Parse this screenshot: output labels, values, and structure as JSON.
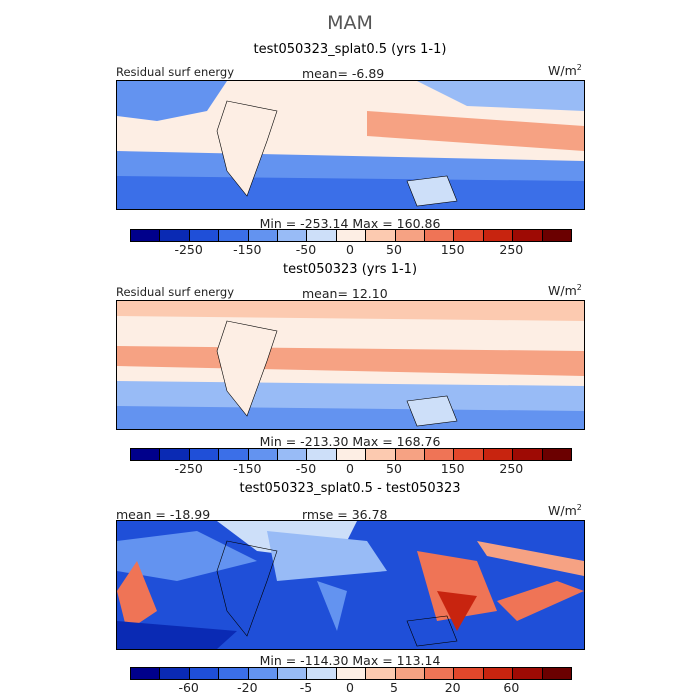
{
  "title": "MAM",
  "variable_label": "Residual surf energy",
  "units_base": "W/m",
  "units_exp": "2",
  "colors": [
    "#00008b",
    "#0a2ab4",
    "#1f4fd8",
    "#3b6fe8",
    "#6393f0",
    "#98bbf6",
    "#cddff9",
    "#fdeee4",
    "#fccab0",
    "#f6a283",
    "#ef7456",
    "#e2472b",
    "#c8240f",
    "#9e0a04",
    "#6b0000"
  ],
  "panels": [
    {
      "subtitle": "test050323_splat0.5 (yrs 1-1)",
      "stat_left": "",
      "stat_center": "mean=  -6.89",
      "minmax": "Min = -253.14 Max = 160.86",
      "tick_labels": [
        "-250",
        "-150",
        "-50",
        "0",
        "50",
        "150",
        "250"
      ]
    },
    {
      "subtitle": "test050323 (yrs 1-1)",
      "stat_left": "",
      "stat_center": "mean=  12.10",
      "minmax": "Min = -213.30 Max = 168.76",
      "tick_labels": [
        "-250",
        "-150",
        "-50",
        "0",
        "50",
        "150",
        "250"
      ]
    },
    {
      "subtitle": "test050323_splat0.5 - test050323",
      "stat_left": "mean = -18.99",
      "stat_center": "rmse =  36.78",
      "minmax": "Min = -114.30 Max = 113.14",
      "tick_labels": [
        "-60",
        "-20",
        "-5",
        "0",
        "5",
        "20",
        "60"
      ]
    }
  ],
  "chart_data": [
    {
      "type": "heatmap",
      "title": "test050323_splat0.5 (yrs 1-1)",
      "variable": "Residual surf energy",
      "units": "W/m2",
      "mean": -6.89,
      "min": -253.14,
      "max": 160.86,
      "colorbar_ticks": [
        -250,
        -150,
        -50,
        0,
        50,
        150,
        250
      ]
    },
    {
      "type": "heatmap",
      "title": "test050323 (yrs 1-1)",
      "variable": "Residual surf energy",
      "units": "W/m2",
      "mean": 12.1,
      "min": -213.3,
      "max": 168.76,
      "colorbar_ticks": [
        -250,
        -150,
        -50,
        0,
        50,
        150,
        250
      ]
    },
    {
      "type": "heatmap",
      "title": "test050323_splat0.5 - test050323",
      "units": "W/m2",
      "mean": -18.99,
      "rmse": 36.78,
      "min": -114.3,
      "max": 113.14,
      "colorbar_ticks": [
        -60,
        -20,
        -5,
        0,
        5,
        20,
        60
      ]
    }
  ]
}
